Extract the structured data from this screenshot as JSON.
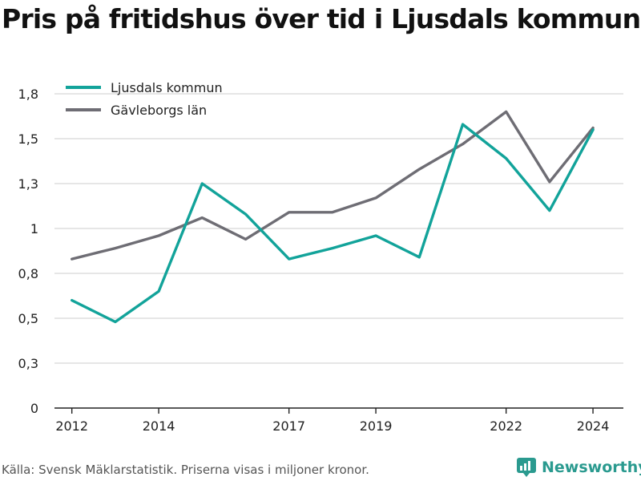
{
  "title": "Pris på fritidshus över tid i Ljusdals kommun",
  "source": "Källa: Svensk Mäklarstatistik. Priserna visas i miljoner kronor.",
  "brand": "Newsworthy",
  "colors": {
    "ljusdal": "#12a39a",
    "gavleborg": "#6e6d74",
    "grid": "#d8d8d8",
    "axis": "#222222"
  },
  "chart_data": {
    "type": "line",
    "title": "Pris på fritidshus över tid i Ljusdals kommun",
    "xlabel": "",
    "ylabel": "",
    "x": [
      2012,
      2013,
      2014,
      2015,
      2016,
      2017,
      2018,
      2019,
      2020,
      2021,
      2022,
      2023,
      2024
    ],
    "ylim": [
      0,
      1.75
    ],
    "y_ticks": [
      0,
      0.25,
      0.5,
      0.75,
      1,
      1.25,
      1.5,
      1.75
    ],
    "y_tick_labels": [
      "0",
      "0,3",
      "0,5",
      "0,8",
      "1",
      "1,3",
      "1,5",
      "1,8"
    ],
    "x_ticks": [
      2012,
      2014,
      2017,
      2019,
      2022,
      2024
    ],
    "x_tick_labels": [
      "2012",
      "2014",
      "2017",
      "2019",
      "2022",
      "2024"
    ],
    "grid": true,
    "legend_position": "top-left",
    "series": [
      {
        "name": "Ljusdals kommun",
        "color": "#12a39a",
        "values": [
          0.6,
          0.48,
          0.65,
          1.25,
          1.08,
          0.83,
          0.89,
          0.96,
          0.84,
          1.58,
          1.39,
          1.1,
          1.55
        ]
      },
      {
        "name": "Gävleborgs län",
        "color": "#6e6d74",
        "values": [
          0.83,
          0.89,
          0.96,
          1.06,
          0.94,
          1.09,
          1.09,
          1.17,
          1.33,
          1.47,
          1.65,
          1.26,
          1.56
        ]
      }
    ]
  }
}
